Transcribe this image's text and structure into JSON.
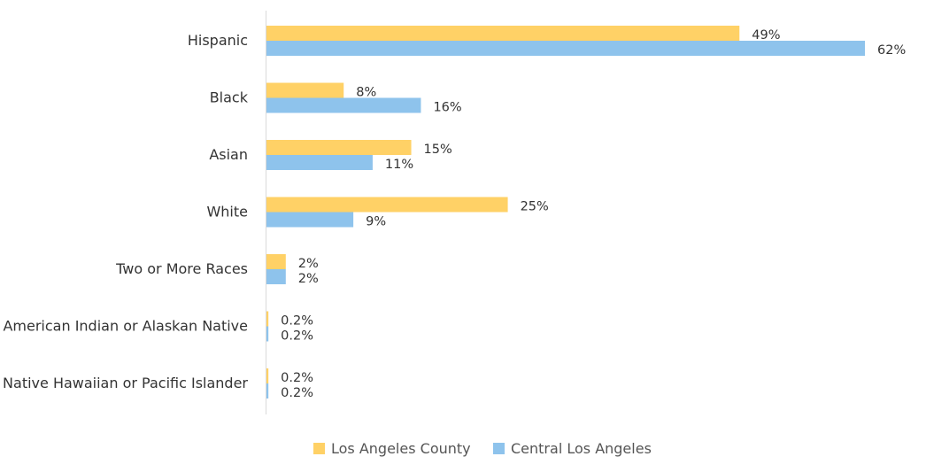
{
  "chart_data": {
    "type": "bar",
    "orientation": "horizontal",
    "categories": [
      "Hispanic",
      "Black",
      "Asian",
      "White",
      "Two or More Races",
      "American Indian or Alaskan Native",
      "Native Hawaiian or Pacific Islander"
    ],
    "series": [
      {
        "name": "Los Angeles County",
        "color": "#FFD166",
        "values": [
          49,
          8,
          15,
          25,
          2,
          0.2,
          0.2
        ],
        "labels": [
          "49%",
          "8%",
          "15%",
          "25%",
          "2%",
          "0.2%",
          "0.2%"
        ]
      },
      {
        "name": "Central Los Angeles",
        "color": "#8EC3EC",
        "values": [
          62,
          16,
          11,
          9,
          2,
          0.2,
          0.2
        ],
        "labels": [
          "62%",
          "16%",
          "11%",
          "9%",
          "2%",
          "0.2%",
          "0.2%"
        ]
      }
    ],
    "title": "",
    "xlabel": "",
    "ylabel": "",
    "xlim": [
      0,
      62
    ],
    "grid": false,
    "legend_position": "bottom"
  }
}
